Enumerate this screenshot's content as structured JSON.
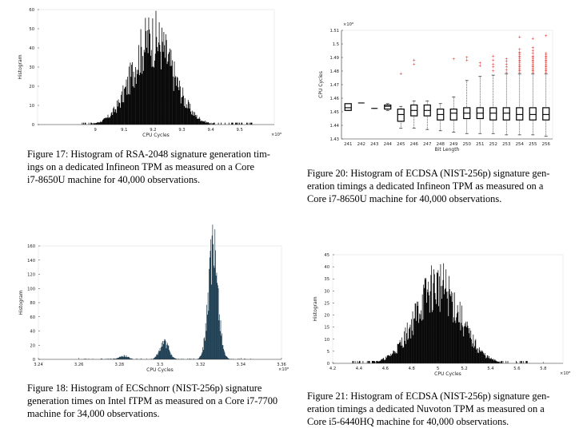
{
  "figures": [
    {
      "id": "fig17",
      "caption": "Figure 17: Histogram of RSA-2048 signature generation timings on a dedicated Infineon TPM as measured on a Core i7-8650U machine for 40,000 observations.",
      "caption_lines": [
        "Figure 17: Histogram of RSA-2048 signature generation tim-",
        "ings on a dedicated Infineon TPM as measured on a Core",
        "i7-8650U machine for 40,000 observations."
      ]
    },
    {
      "id": "fig20",
      "caption": "Figure 20: Histogram of ECDSA (NIST-256p) signature generation timings a dedicated Infineon TPM as measured on a Core i7-8650U machine for 40,000 observations.",
      "caption_lines": [
        "Figure 20: Histogram of ECDSA (NIST-256p) signature gen-",
        "eration timings a dedicated Infineon TPM as measured on a",
        "Core i7-8650U machine for 40,000 observations."
      ]
    },
    {
      "id": "fig18",
      "caption": "Figure 18: Histogram of ECSchnorr (NIST-256p) signature generation times on Intel fTPM as measured on a Core i7-7700 machine for 34,000 observations.",
      "caption_lines": [
        "Figure 18: Histogram of ECSchnorr (NIST-256p) signature",
        "generation times on Intel fTPM as measured on a Core i7-7700",
        "machine for 34,000 observations."
      ]
    },
    {
      "id": "fig21",
      "caption": "Figure 21: Histogram of ECDSA (NIST-256p) signature generation timings a dedicated Nuvoton TPM as measured on a Core i5-6440HQ machine for 40,000 observations.",
      "caption_lines": [
        "Figure 21: Histogram of ECDSA (NIST-256p) signature gen-",
        "eration timings a dedicated Nuvoton TPM as measured on a",
        "Core i5-6440HQ machine for 40,000 observations."
      ]
    }
  ],
  "chart_data": [
    {
      "id": "fig17",
      "type": "bar",
      "title": "",
      "xlabel": "CPU Cycles",
      "ylabel": "Histogram",
      "x_multiplier": "×10⁸",
      "xlim": [
        8.8,
        9.62
      ],
      "ylim": [
        0,
        60
      ],
      "xticks": [
        9,
        9.1,
        9.2,
        9.3,
        9.4,
        9.5
      ],
      "xtick_labels": [
        "9",
        "9.1",
        "9.2",
        "9.3",
        "9.4",
        "9.5"
      ],
      "yticks": [
        0,
        10,
        20,
        30,
        40,
        50,
        60
      ],
      "ytick_labels": [
        "0",
        "10",
        "20",
        "30",
        "40",
        "50",
        "60"
      ],
      "color": "#000000",
      "distribution": {
        "kind": "gaussian",
        "center": 9.2,
        "sigma": 0.07,
        "peak": 45,
        "noise": 0.35,
        "min_x": 8.95,
        "max_x": 9.55
      }
    },
    {
      "id": "fig20",
      "type": "box",
      "title": "",
      "xlabel": "Bit Length",
      "ylabel": "CPU Cycles",
      "y_multiplier": "×10⁸",
      "ylim": [
        1.43,
        1.51
      ],
      "yticks": [
        1.43,
        1.44,
        1.45,
        1.46,
        1.47,
        1.48,
        1.49,
        1.5,
        1.51
      ],
      "ytick_labels": [
        "1.43",
        "1.44",
        "1.45",
        "1.46",
        "1.47",
        "1.48",
        "1.49",
        "1.5",
        "1.51"
      ],
      "categories": [
        "241",
        "242",
        "243",
        "244",
        "245",
        "246",
        "247",
        "248",
        "249",
        "250",
        "251",
        "252",
        "253",
        "254",
        "255",
        "256"
      ],
      "boxes": [
        {
          "q1": 1.451,
          "median": 1.453,
          "q3": 1.456,
          "wlo": 1.451,
          "whi": 1.456
        },
        {
          "q1": 1.4565,
          "median": 1.4565,
          "q3": 1.4565,
          "wlo": 1.4565,
          "whi": 1.4565
        },
        {
          "q1": 1.4525,
          "median": 1.4525,
          "q3": 1.4525,
          "wlo": 1.4525,
          "whi": 1.4525
        },
        {
          "q1": 1.452,
          "median": 1.454,
          "q3": 1.455,
          "wlo": 1.451,
          "whi": 1.456
        },
        {
          "q1": 1.443,
          "median": 1.448,
          "q3": 1.452,
          "wlo": 1.438,
          "whi": 1.454
        },
        {
          "q1": 1.447,
          "median": 1.451,
          "q3": 1.455,
          "wlo": 1.438,
          "whi": 1.458
        },
        {
          "q1": 1.447,
          "median": 1.451,
          "q3": 1.455,
          "wlo": 1.437,
          "whi": 1.458
        },
        {
          "q1": 1.444,
          "median": 1.448,
          "q3": 1.452,
          "wlo": 1.436,
          "whi": 1.456
        },
        {
          "q1": 1.444,
          "median": 1.449,
          "q3": 1.452,
          "wlo": 1.435,
          "whi": 1.461
        },
        {
          "q1": 1.445,
          "median": 1.449,
          "q3": 1.453,
          "wlo": 1.434,
          "whi": 1.473
        },
        {
          "q1": 1.445,
          "median": 1.449,
          "q3": 1.453,
          "wlo": 1.434,
          "whi": 1.476
        },
        {
          "q1": 1.444,
          "median": 1.449,
          "q3": 1.453,
          "wlo": 1.434,
          "whi": 1.477
        },
        {
          "q1": 1.444,
          "median": 1.449,
          "q3": 1.453,
          "wlo": 1.433,
          "whi": 1.478
        },
        {
          "q1": 1.444,
          "median": 1.448,
          "q3": 1.453,
          "wlo": 1.433,
          "whi": 1.478
        },
        {
          "q1": 1.444,
          "median": 1.448,
          "q3": 1.453,
          "wlo": 1.433,
          "whi": 1.478
        },
        {
          "q1": 1.444,
          "median": 1.448,
          "q3": 1.453,
          "wlo": 1.432,
          "whi": 1.478
        }
      ],
      "outliers": [
        [],
        [],
        [],
        [],
        [
          1.478
        ],
        [
          1.485,
          1.488
        ],
        [],
        [],
        [
          1.489
        ],
        [
          1.49,
          1.488
        ],
        [
          1.484,
          1.486
        ],
        [
          1.48,
          1.483,
          1.485,
          1.488,
          1.491
        ],
        [
          1.479,
          1.481,
          1.483,
          1.485,
          1.487,
          1.489
        ],
        [
          1.479,
          1.48,
          1.481,
          1.482,
          1.483,
          1.484,
          1.485,
          1.486,
          1.487,
          1.488,
          1.489,
          1.49,
          1.491,
          1.492,
          1.493,
          1.494,
          1.496,
          1.505
        ],
        [
          1.479,
          1.48,
          1.481,
          1.482,
          1.483,
          1.484,
          1.485,
          1.486,
          1.487,
          1.488,
          1.489,
          1.49,
          1.491,
          1.493,
          1.495,
          1.497,
          1.504
        ],
        [
          1.479,
          1.48,
          1.481,
          1.482,
          1.483,
          1.484,
          1.485,
          1.486,
          1.487,
          1.488,
          1.489,
          1.49,
          1.491,
          1.492,
          1.493,
          1.506
        ]
      ],
      "outlier_color": "#e0201b"
    },
    {
      "id": "fig18",
      "type": "bar",
      "title": "",
      "xlabel": "CPU Cycles",
      "ylabel": "Histogram",
      "x_multiplier": "×10⁸",
      "xlim": [
        3.24,
        3.36
      ],
      "ylim": [
        0,
        160
      ],
      "xticks": [
        3.24,
        3.26,
        3.28,
        3.3,
        3.32,
        3.34,
        3.36
      ],
      "xtick_labels": [
        "3.24",
        "3.26",
        "3.28",
        "3.3",
        "3.32",
        "3.34",
        "3.36"
      ],
      "yticks": [
        0,
        20,
        40,
        60,
        80,
        100,
        120,
        140,
        160
      ],
      "ytick_labels": [
        "0",
        "20",
        "40",
        "60",
        "80",
        "100",
        "120",
        "140",
        "160"
      ],
      "color": "#1a3b50",
      "distribution": {
        "kind": "multimodal",
        "modes": [
          {
            "center": 3.2824,
            "sigma": 0.0022,
            "peak": 5
          },
          {
            "center": 3.3023,
            "sigma": 0.0022,
            "peak": 24
          },
          {
            "center": 3.3265,
            "sigma": 0.0024,
            "peak": 150
          }
        ],
        "noise": 0.3,
        "min_x": 3.262,
        "max_x": 3.345
      }
    },
    {
      "id": "fig21",
      "type": "bar",
      "title": "",
      "xlabel": "CPU Cycles",
      "ylabel": "Histogram",
      "x_multiplier": "×10⁸",
      "xlim": [
        4.2,
        5.95
      ],
      "ylim": [
        0,
        45
      ],
      "xticks": [
        4.2,
        4.4,
        4.6,
        4.8,
        5,
        5.2,
        5.4,
        5.6,
        5.8
      ],
      "xtick_labels": [
        "4.2",
        "4.4",
        "4.6",
        "4.8",
        "5",
        "5.2",
        "5.4",
        "5.6",
        "5.8"
      ],
      "yticks": [
        0,
        5,
        10,
        15,
        20,
        25,
        30,
        35,
        40,
        45
      ],
      "ytick_labels": [
        "0",
        "5",
        "10",
        "15",
        "20",
        "25",
        "30",
        "35",
        "40",
        "45"
      ],
      "color": "#000000",
      "distribution": {
        "kind": "gaussian",
        "center": 5.0,
        "sigma": 0.17,
        "peak": 32,
        "noise": 0.35,
        "min_x": 4.35,
        "max_x": 5.75
      }
    }
  ]
}
